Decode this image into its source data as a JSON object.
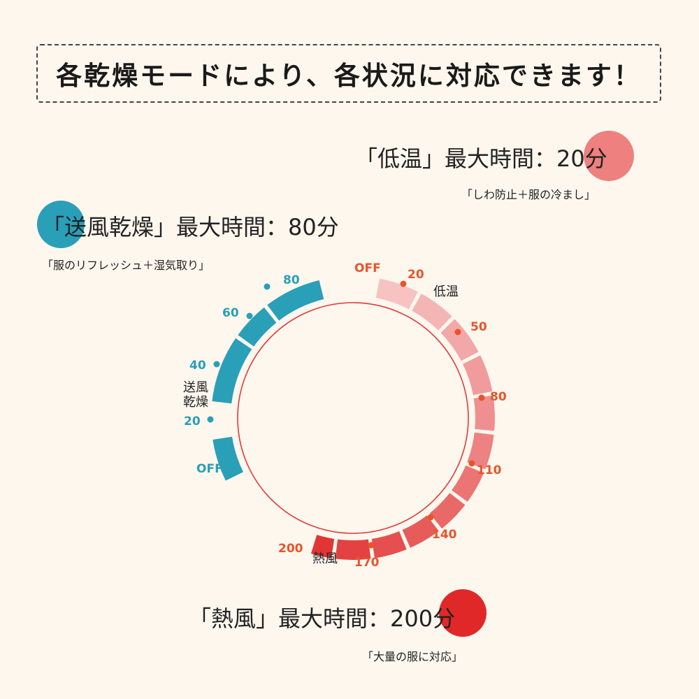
{
  "banner": {
    "title": "各乾燥モードにより、各状況に対応できます！"
  },
  "modes": {
    "low_temp": {
      "title": "「低温」最大時間：20分",
      "subtitle": "「しわ防止＋服の冷まし」",
      "color": "#ee8080",
      "dial_label": "低温"
    },
    "air_dry": {
      "title": "「送風乾燥」最大時間：80分",
      "subtitle": "「服のリフレッシュ＋湿気取り」",
      "color": "#2a9fb8",
      "dial_label_line1": "送風",
      "dial_label_line2": "乾燥"
    },
    "hot_air": {
      "title": "「熱風」最大時間：200分",
      "subtitle": "「大量の服に対応」",
      "color": "#e02828",
      "dial_label": "熱風"
    }
  },
  "dial": {
    "ring_color": "#e03a3a",
    "air_color": "#2a9fb8",
    "warm_gradient": [
      "#f6c2c2",
      "#e23535"
    ],
    "air_ticks": [
      "OFF",
      "20",
      "40",
      "60",
      "80"
    ],
    "warm_ticks": [
      "OFF",
      "20",
      "50",
      "80",
      "110",
      "140",
      "170",
      "200"
    ]
  }
}
